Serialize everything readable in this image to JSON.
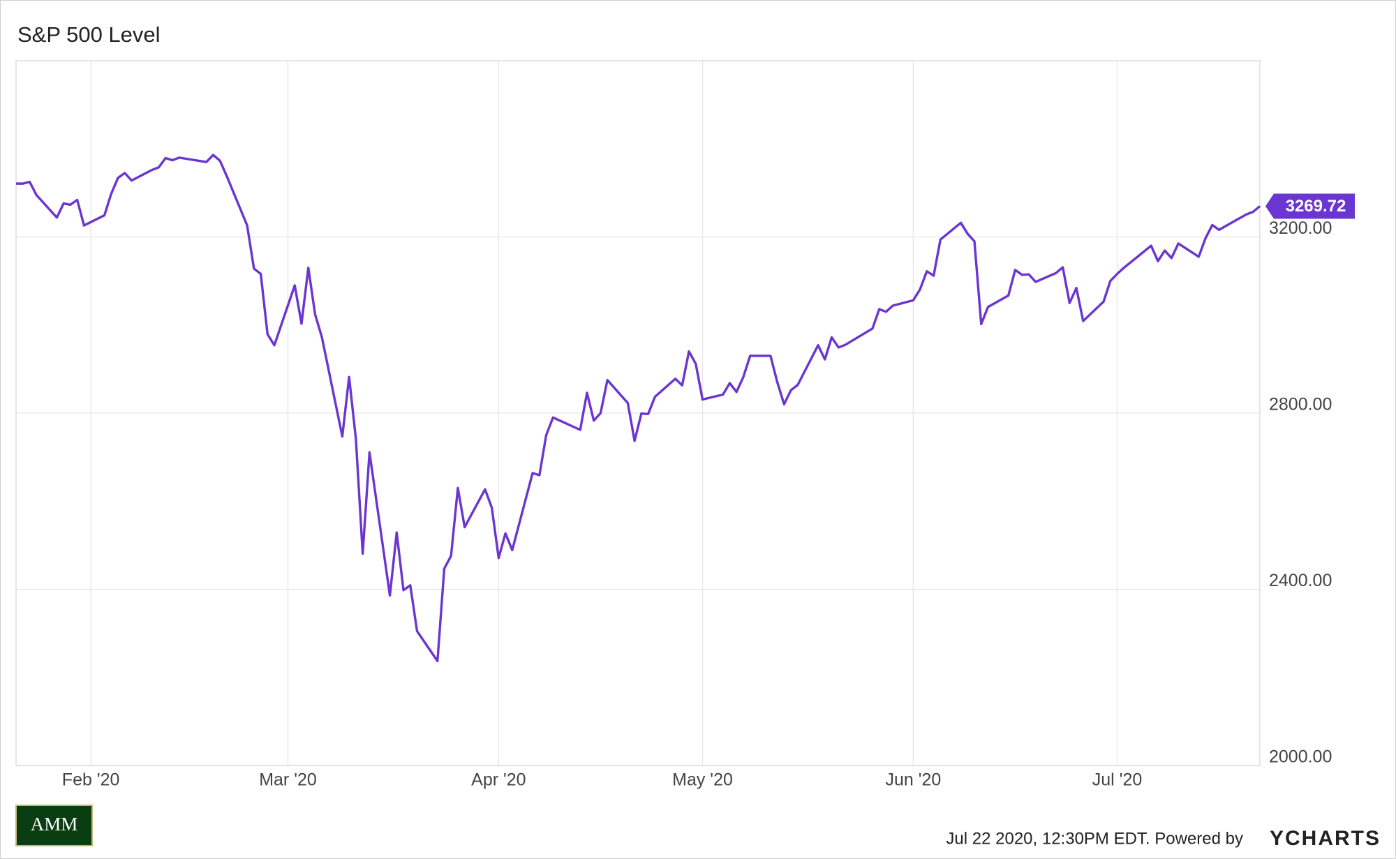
{
  "chart_data": {
    "type": "line",
    "title": "S&P 500 Level",
    "footer": "Jul 22 2020, 12:30PM EDT. Powered by",
    "brand": "YCHARTS",
    "logo": "AMM",
    "grid": true,
    "xlim": [
      "2020-01-21",
      "2020-07-22"
    ],
    "xticks": [
      {
        "value": "2020-02-01",
        "label": "Feb '20"
      },
      {
        "value": "2020-03-01",
        "label": "Mar '20"
      },
      {
        "value": "2020-04-01",
        "label": "Apr '20"
      },
      {
        "value": "2020-05-01",
        "label": "May '20"
      },
      {
        "value": "2020-06-01",
        "label": "Jun '20"
      },
      {
        "value": "2020-07-01",
        "label": "Jul '20"
      }
    ],
    "ylim": [
      2000,
      3600
    ],
    "yticks": [
      {
        "value": 2000,
        "label": "2000.00"
      },
      {
        "value": 2400,
        "label": "2400.00"
      },
      {
        "value": 2800,
        "label": "2800.00"
      },
      {
        "value": 3200,
        "label": "3200.00"
      }
    ],
    "x": [
      "2020-01-21",
      "2020-01-22",
      "2020-01-23",
      "2020-01-24",
      "2020-01-27",
      "2020-01-28",
      "2020-01-29",
      "2020-01-30",
      "2020-01-31",
      "2020-02-03",
      "2020-02-04",
      "2020-02-05",
      "2020-02-06",
      "2020-02-07",
      "2020-02-10",
      "2020-02-11",
      "2020-02-12",
      "2020-02-13",
      "2020-02-14",
      "2020-02-18",
      "2020-02-19",
      "2020-02-20",
      "2020-02-21",
      "2020-02-24",
      "2020-02-25",
      "2020-02-26",
      "2020-02-27",
      "2020-02-28",
      "2020-03-02",
      "2020-03-03",
      "2020-03-04",
      "2020-03-05",
      "2020-03-06",
      "2020-03-09",
      "2020-03-10",
      "2020-03-11",
      "2020-03-12",
      "2020-03-13",
      "2020-03-16",
      "2020-03-17",
      "2020-03-18",
      "2020-03-19",
      "2020-03-20",
      "2020-03-23",
      "2020-03-24",
      "2020-03-25",
      "2020-03-26",
      "2020-03-27",
      "2020-03-30",
      "2020-03-31",
      "2020-04-01",
      "2020-04-02",
      "2020-04-03",
      "2020-04-06",
      "2020-04-07",
      "2020-04-08",
      "2020-04-09",
      "2020-04-13",
      "2020-04-14",
      "2020-04-15",
      "2020-04-16",
      "2020-04-17",
      "2020-04-20",
      "2020-04-21",
      "2020-04-22",
      "2020-04-23",
      "2020-04-24",
      "2020-04-27",
      "2020-04-28",
      "2020-04-29",
      "2020-04-30",
      "2020-05-01",
      "2020-05-04",
      "2020-05-05",
      "2020-05-06",
      "2020-05-07",
      "2020-05-08",
      "2020-05-11",
      "2020-05-12",
      "2020-05-13",
      "2020-05-14",
      "2020-05-15",
      "2020-05-18",
      "2020-05-19",
      "2020-05-20",
      "2020-05-21",
      "2020-05-22",
      "2020-05-26",
      "2020-05-27",
      "2020-05-28",
      "2020-05-29",
      "2020-06-01",
      "2020-06-02",
      "2020-06-03",
      "2020-06-04",
      "2020-06-05",
      "2020-06-08",
      "2020-06-09",
      "2020-06-10",
      "2020-06-11",
      "2020-06-12",
      "2020-06-15",
      "2020-06-16",
      "2020-06-17",
      "2020-06-18",
      "2020-06-19",
      "2020-06-22",
      "2020-06-23",
      "2020-06-24",
      "2020-06-25",
      "2020-06-26",
      "2020-06-29",
      "2020-06-30",
      "2020-07-01",
      "2020-07-02",
      "2020-07-06",
      "2020-07-07",
      "2020-07-08",
      "2020-07-09",
      "2020-07-10",
      "2020-07-13",
      "2020-07-14",
      "2020-07-15",
      "2020-07-16",
      "2020-07-17",
      "2020-07-20",
      "2020-07-21",
      "2020-07-22"
    ],
    "series": [
      {
        "name": "S&P 500 Level",
        "color": "#6a35d0",
        "values": [
          3321,
          3321,
          3325,
          3295,
          3244,
          3276,
          3273,
          3284,
          3226,
          3249,
          3298,
          3334,
          3345,
          3328,
          3352,
          3358,
          3379,
          3374,
          3380,
          3370,
          3386,
          3373,
          3338,
          3226,
          3128,
          3116,
          2979,
          2954,
          3090,
          3003,
          3130,
          3024,
          2972,
          2747,
          2882,
          2741,
          2481,
          2711,
          2386,
          2529,
          2398,
          2409,
          2305,
          2237,
          2447,
          2476,
          2630,
          2541,
          2627,
          2585,
          2471,
          2527,
          2489,
          2664,
          2659,
          2750,
          2790,
          2762,
          2846,
          2783,
          2800,
          2875,
          2823,
          2737,
          2799,
          2798,
          2837,
          2878,
          2863,
          2940,
          2912,
          2831,
          2842,
          2868,
          2848,
          2882,
          2930,
          2930,
          2870,
          2820,
          2852,
          2864,
          2954,
          2922,
          2972,
          2949,
          2955,
          2992,
          3036,
          3030,
          3044,
          3056,
          3081,
          3122,
          3112,
          3194,
          3232,
          3207,
          3190,
          3002,
          3041,
          3067,
          3125,
          3114,
          3115,
          3098,
          3118,
          3131,
          3050,
          3084,
          3009,
          3053,
          3100,
          3116,
          3130,
          3180,
          3145,
          3169,
          3152,
          3185,
          3155,
          3197,
          3227,
          3216,
          3225,
          3251,
          3257,
          3269.72
        ]
      }
    ]
  }
}
